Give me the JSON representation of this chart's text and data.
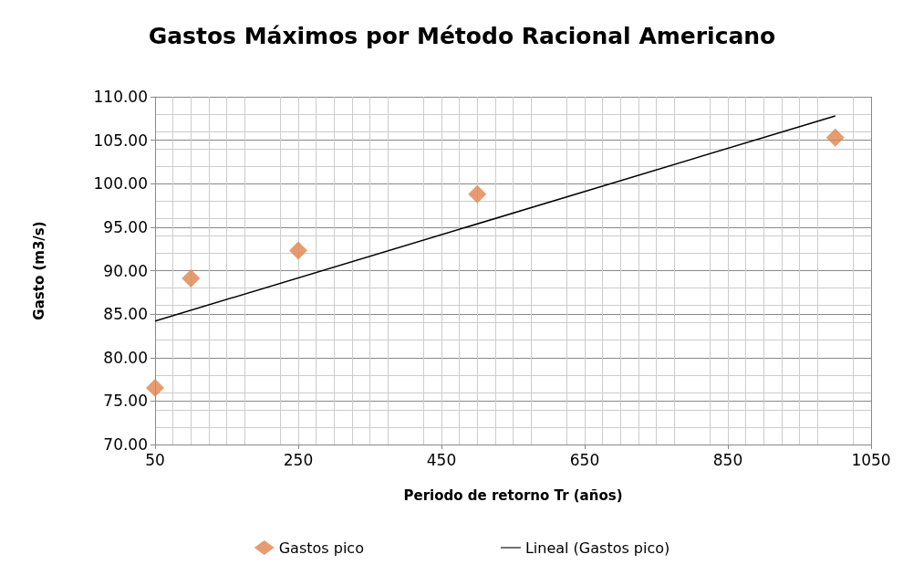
{
  "chart_data": {
    "type": "scatter",
    "title": "Gastos Máximos por Método Racional Americano",
    "xlabel": "Periodo de retorno Tr (años)",
    "ylabel": "Gasto (m3/s)",
    "xlim": [
      50,
      1050
    ],
    "xticks": [
      50,
      250,
      450,
      650,
      850,
      1050
    ],
    "ylim": [
      70,
      110
    ],
    "yticks": [
      {
        "value": 70,
        "label": "70.00"
      },
      {
        "value": 75,
        "label": "75.00"
      },
      {
        "value": 80,
        "label": "80.00"
      },
      {
        "value": 85,
        "label": "85.00"
      },
      {
        "value": 90,
        "label": "90.00"
      },
      {
        "value": 95,
        "label": "95.00"
      },
      {
        "value": 100,
        "label": "100.00"
      },
      {
        "value": 105,
        "label": "105.00"
      },
      {
        "value": 110,
        "label": "110.00"
      }
    ],
    "grid": true,
    "legend": "bottom",
    "series": [
      {
        "name": "Gastos pico",
        "marker": "diamond",
        "color": "#e0834c",
        "x": [
          50,
          100,
          250,
          500,
          1000
        ],
        "values": [
          76.5,
          89.1,
          92.3,
          98.8,
          105.3
        ]
      },
      {
        "name": "Lineal (Gastos pico)",
        "type": "line",
        "marker": "none",
        "line_style": "solid",
        "color": "#000000",
        "x": [
          50,
          1000
        ],
        "values": [
          84.2,
          107.8
        ]
      }
    ]
  }
}
